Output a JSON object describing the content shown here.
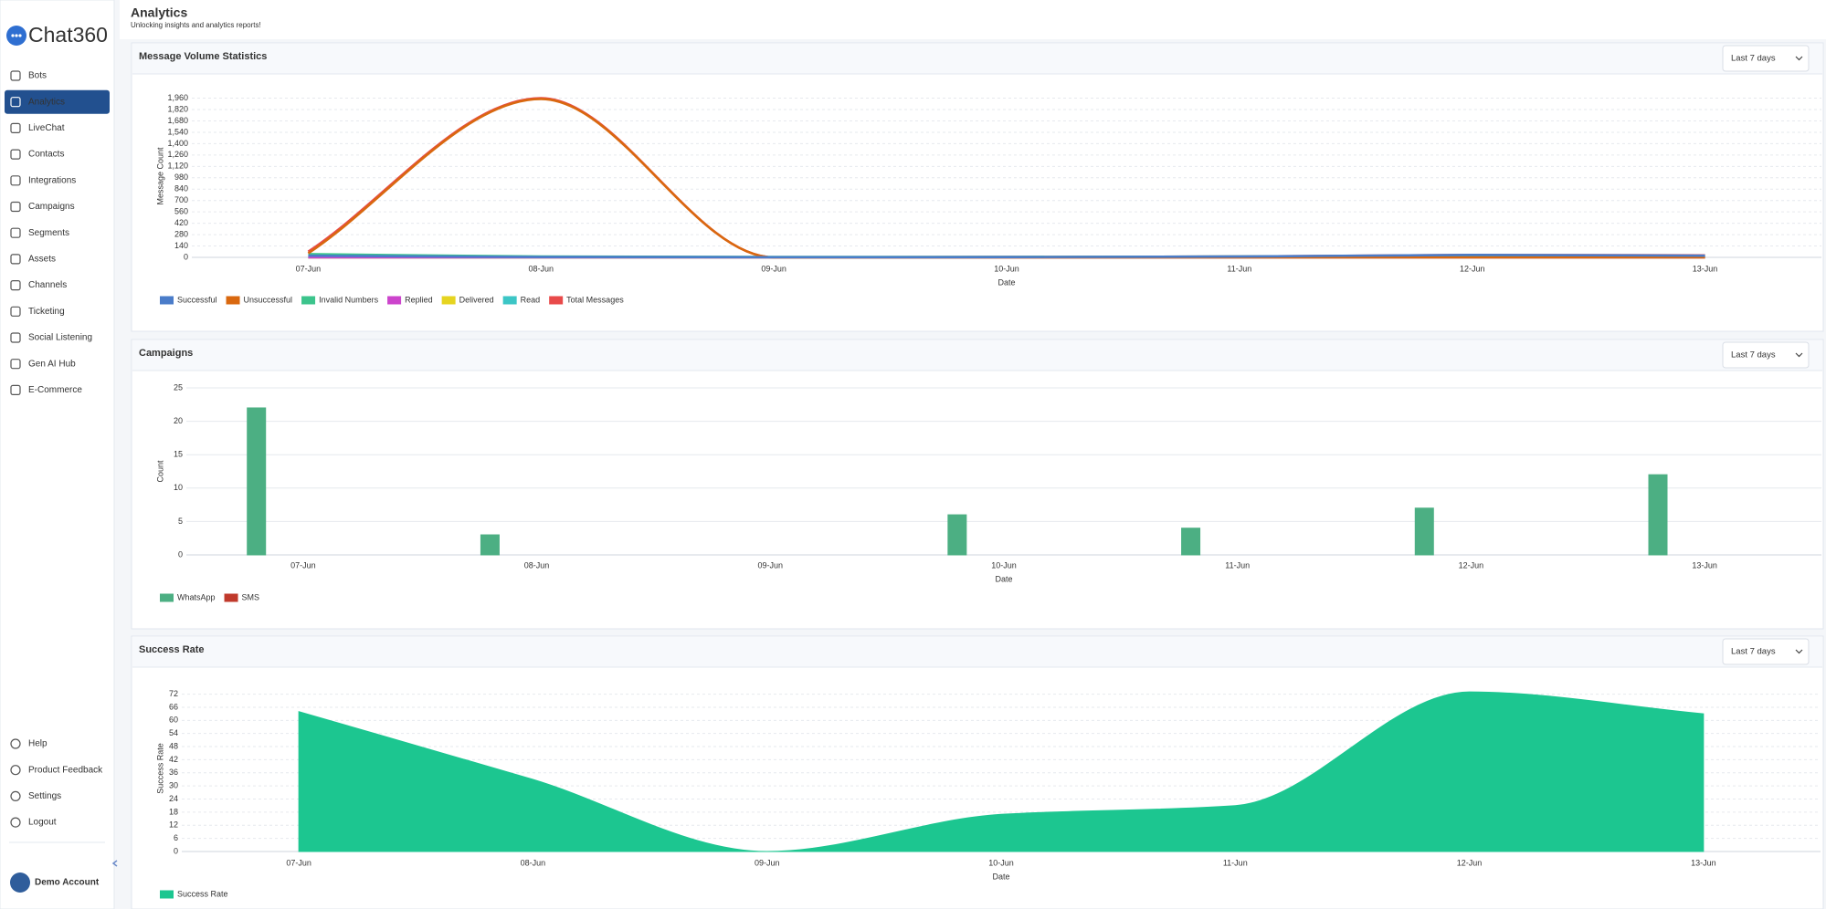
{
  "sidebar": {
    "brand": "Chat360",
    "nav": [
      "Bots",
      "Analytics",
      "LiveChat",
      "Contacts",
      "Integrations",
      "Campaigns",
      "Segments",
      "Assets",
      "Channels",
      "Ticketing",
      "Social Listening",
      "Gen AI Hub",
      "E-Commerce"
    ],
    "active": 1,
    "footer_nav": [
      "Help",
      "Product Feedback",
      "Settings",
      "Logout"
    ],
    "account": "Demo Account"
  },
  "header": {
    "title": "Analytics",
    "subtitle": "Unlocking insights and analytics reports!"
  },
  "chart_data": [
    {
      "type": "line",
      "title": "Message Volume Statistics",
      "period": "Last 7 days",
      "x_label": "Date",
      "y_label": "Message Count",
      "categories": [
        "07-Jun",
        "08-Jun",
        "09-Jun",
        "10-Jun",
        "11-Jun",
        "12-Jun",
        "13-Jun"
      ],
      "series": [
        {
          "name": "Successful",
          "color": "#4a7cc9",
          "values": [
            20,
            5,
            2,
            3,
            10,
            30,
            20
          ]
        },
        {
          "name": "Unsuccessful",
          "color": "#d9680f",
          "values": [
            50,
            1950,
            0,
            0,
            0,
            0,
            0
          ]
        },
        {
          "name": "Invalid Numbers",
          "color": "#3cc48c",
          "values": [
            40,
            10,
            5,
            5,
            10,
            20,
            15
          ]
        },
        {
          "name": "Replied",
          "color": "#cc44cc",
          "values": [
            0,
            0,
            0,
            0,
            0,
            0,
            0
          ]
        },
        {
          "name": "Delivered",
          "color": "#e6d420",
          "values": [
            0,
            0,
            0,
            0,
            0,
            0,
            0
          ]
        },
        {
          "name": "Read",
          "color": "#3cc6c6",
          "values": [
            0,
            0,
            0,
            0,
            0,
            0,
            0
          ]
        },
        {
          "name": "Total Messages",
          "color": "#e84a4a",
          "values": [
            70,
            1960,
            0,
            5,
            10,
            30,
            25
          ]
        }
      ],
      "ylim": [
        0,
        2000
      ],
      "yticks": [
        0,
        140,
        280,
        420,
        560,
        700,
        840,
        980,
        {
          "value": 1120,
          "label": "1,120"
        },
        {
          "value": 1260,
          "label": "1,260"
        },
        {
          "value": 1400,
          "label": "1,400"
        },
        {
          "value": 1540,
          "label": "1,540"
        },
        {
          "value": 1680,
          "label": "1,680"
        },
        {
          "value": 1820,
          "label": "1,820"
        },
        {
          "value": 1960,
          "label": "1,960"
        }
      ],
      "grid": true
    },
    {
      "type": "bar",
      "title": "Campaigns",
      "period": "Last 7 days",
      "x_label": "Date",
      "y_label": "Count",
      "categories": [
        "07-Jun",
        "08-Jun",
        "09-Jun",
        "10-Jun",
        "11-Jun",
        "12-Jun",
        "13-Jun"
      ],
      "series": [
        {
          "name": "WhatsApp",
          "color": "#4caf83",
          "values": [
            22,
            3,
            0,
            6,
            4,
            7,
            12
          ]
        },
        {
          "name": "SMS",
          "color": "#c0392b",
          "values": [
            0,
            0,
            0,
            0,
            0,
            0,
            0
          ]
        }
      ],
      "ylim": [
        0,
        25
      ],
      "yticks": [
        0,
        5,
        10,
        15,
        20,
        25
      ],
      "grid": true
    },
    {
      "type": "area",
      "title": "Success Rate",
      "period": "Last 7 days",
      "x_label": "Date",
      "y_label": "Success Rate",
      "categories": [
        "07-Jun",
        "08-Jun",
        "09-Jun",
        "10-Jun",
        "11-Jun",
        "12-Jun",
        "13-Jun"
      ],
      "series": [
        {
          "name": "Success Rate",
          "color": "#1cc690",
          "values": [
            64,
            33,
            0,
            17,
            21,
            73,
            63
          ]
        }
      ],
      "ylim": [
        0,
        76
      ],
      "yticks": [
        0,
        6,
        12,
        18,
        24,
        30,
        36,
        42,
        48,
        54,
        60,
        66,
        72
      ],
      "grid": true
    }
  ]
}
